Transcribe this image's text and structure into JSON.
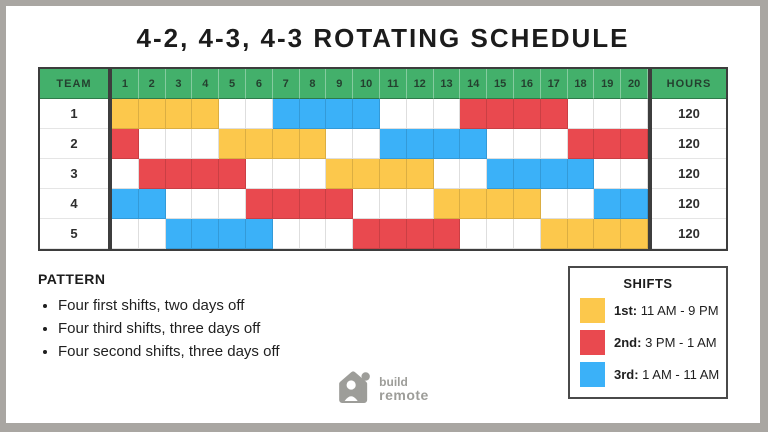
{
  "title": "4-2, 4-3, 4-3 ROTATING SCHEDULE",
  "colors": {
    "first": "#FCC84C",
    "second": "#E9494F",
    "third": "#3BB1F8",
    "off": "#FFFFFF",
    "header_green": "#43B06B",
    "frame_gray": "#A9A6A2",
    "logo_gray": "#9D9D99"
  },
  "schedule": {
    "team_header": "TEAM",
    "hours_header": "HOURS",
    "days": [
      "1",
      "2",
      "3",
      "4",
      "5",
      "6",
      "7",
      "8",
      "9",
      "10",
      "11",
      "12",
      "13",
      "14",
      "15",
      "16",
      "17",
      "18",
      "19",
      "20"
    ],
    "rows": [
      {
        "team": "1",
        "hours": "120",
        "shifts": [
          "1st",
          "1st",
          "1st",
          "1st",
          "off",
          "off",
          "3rd",
          "3rd",
          "3rd",
          "3rd",
          "off",
          "off",
          "off",
          "2nd",
          "2nd",
          "2nd",
          "2nd",
          "off",
          "off",
          "off"
        ]
      },
      {
        "team": "2",
        "hours": "120",
        "shifts": [
          "2nd",
          "off",
          "off",
          "off",
          "1st",
          "1st",
          "1st",
          "1st",
          "off",
          "off",
          "3rd",
          "3rd",
          "3rd",
          "3rd",
          "off",
          "off",
          "off",
          "2nd",
          "2nd",
          "2nd"
        ]
      },
      {
        "team": "3",
        "hours": "120",
        "shifts": [
          "off",
          "2nd",
          "2nd",
          "2nd",
          "2nd",
          "off",
          "off",
          "off",
          "1st",
          "1st",
          "1st",
          "1st",
          "off",
          "off",
          "3rd",
          "3rd",
          "3rd",
          "3rd",
          "off",
          "off"
        ]
      },
      {
        "team": "4",
        "hours": "120",
        "shifts": [
          "3rd",
          "3rd",
          "off",
          "off",
          "off",
          "2nd",
          "2nd",
          "2nd",
          "2nd",
          "off",
          "off",
          "off",
          "1st",
          "1st",
          "1st",
          "1st",
          "off",
          "off",
          "3rd",
          "3rd"
        ]
      },
      {
        "team": "5",
        "hours": "120",
        "shifts": [
          "off",
          "off",
          "3rd",
          "3rd",
          "3rd",
          "3rd",
          "off",
          "off",
          "off",
          "2nd",
          "2nd",
          "2nd",
          "2nd",
          "off",
          "off",
          "off",
          "1st",
          "1st",
          "1st",
          "1st"
        ]
      }
    ]
  },
  "pattern": {
    "heading": "PATTERN",
    "bullets": [
      "Four first shifts, two days off",
      "Four third shifts, three days off",
      "Four second shifts, three days off"
    ]
  },
  "legend": {
    "title": "SHIFTS",
    "entries": [
      {
        "label": "1st:",
        "time": "11 AM - 9 PM",
        "color_key": "first"
      },
      {
        "label": "2nd:",
        "time": "3 PM - 1 AM",
        "color_key": "second"
      },
      {
        "label": "3rd:",
        "time": "1 AM - 11 AM",
        "color_key": "third"
      }
    ]
  },
  "logo": {
    "line1": "build",
    "line2": "remote"
  },
  "chart_data": {
    "type": "table",
    "title": "4-2, 4-3, 4-3 ROTATING SCHEDULE",
    "columns": [
      "TEAM",
      "1",
      "2",
      "3",
      "4",
      "5",
      "6",
      "7",
      "8",
      "9",
      "10",
      "11",
      "12",
      "13",
      "14",
      "15",
      "16",
      "17",
      "18",
      "19",
      "20",
      "HOURS"
    ],
    "shift_legend": {
      "1st": {
        "time": "11 AM - 9 PM",
        "color": "#FCC84C"
      },
      "2nd": {
        "time": "3 PM - 1 AM",
        "color": "#E9494F"
      },
      "3rd": {
        "time": "1 AM - 11 AM",
        "color": "#3BB1F8"
      },
      "off": {
        "time": "day off",
        "color": "#FFFFFF"
      }
    },
    "rows": [
      {
        "team": "1",
        "days": [
          "1st",
          "1st",
          "1st",
          "1st",
          "off",
          "off",
          "3rd",
          "3rd",
          "3rd",
          "3rd",
          "off",
          "off",
          "off",
          "2nd",
          "2nd",
          "2nd",
          "2nd",
          "off",
          "off",
          "off"
        ],
        "hours": 120
      },
      {
        "team": "2",
        "days": [
          "2nd",
          "off",
          "off",
          "off",
          "1st",
          "1st",
          "1st",
          "1st",
          "off",
          "off",
          "3rd",
          "3rd",
          "3rd",
          "3rd",
          "off",
          "off",
          "off",
          "2nd",
          "2nd",
          "2nd"
        ],
        "hours": 120
      },
      {
        "team": "3",
        "days": [
          "off",
          "2nd",
          "2nd",
          "2nd",
          "2nd",
          "off",
          "off",
          "off",
          "1st",
          "1st",
          "1st",
          "1st",
          "off",
          "off",
          "3rd",
          "3rd",
          "3rd",
          "3rd",
          "off",
          "off"
        ],
        "hours": 120
      },
      {
        "team": "4",
        "days": [
          "3rd",
          "3rd",
          "off",
          "off",
          "off",
          "2nd",
          "2nd",
          "2nd",
          "2nd",
          "off",
          "off",
          "off",
          "1st",
          "1st",
          "1st",
          "1st",
          "off",
          "off",
          "3rd",
          "3rd"
        ],
        "hours": 120
      },
      {
        "team": "5",
        "days": [
          "off",
          "off",
          "3rd",
          "3rd",
          "3rd",
          "3rd",
          "off",
          "off",
          "off",
          "2nd",
          "2nd",
          "2nd",
          "2nd",
          "off",
          "off",
          "off",
          "1st",
          "1st",
          "1st",
          "1st"
        ],
        "hours": 120
      }
    ],
    "pattern_notes": [
      "Four first shifts, two days off",
      "Four third shifts, three days off",
      "Four second shifts, three days off"
    ]
  }
}
